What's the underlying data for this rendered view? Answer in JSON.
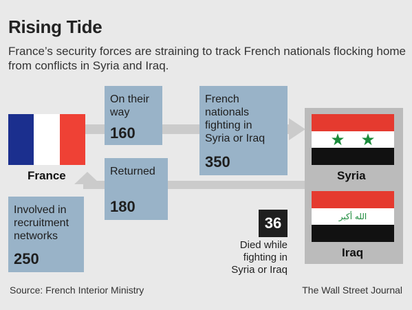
{
  "header": {
    "title": "Rising Tide",
    "subtitle": "France’s security forces are straining to track French nationals flocking home from conflicts in Syria and Iraq."
  },
  "countries": {
    "france": "France",
    "syria": "Syria",
    "iraq": "Iraq"
  },
  "boxes": {
    "on_their_way": {
      "label": "On their way",
      "value": "160"
    },
    "fighting": {
      "label": "French nationals fighting in Syria or Iraq",
      "value": "350"
    },
    "returned": {
      "label": "Returned",
      "value": "180"
    },
    "recruitment": {
      "label": "Involved in recruitment networks",
      "value": "250"
    }
  },
  "died": {
    "value": "36",
    "label": "Died while fighting in Syria or Iraq"
  },
  "flags": {
    "iraq_inscription": "الله أكبر"
  },
  "footer": {
    "source": "Source: French Interior Ministry",
    "credit": "The Wall Street Journal"
  },
  "colors": {
    "background": "#e9e9e9",
    "box": "#99b3c8",
    "arrow": "#cbcbcb",
    "panel": "#bbbbbb",
    "france_blue": "#1b2f8e",
    "france_white": "#ffffff",
    "france_red": "#ef4135",
    "flag_red": "#e53a2f",
    "flag_black": "#111111",
    "star_green": "#1a8a3a"
  }
}
